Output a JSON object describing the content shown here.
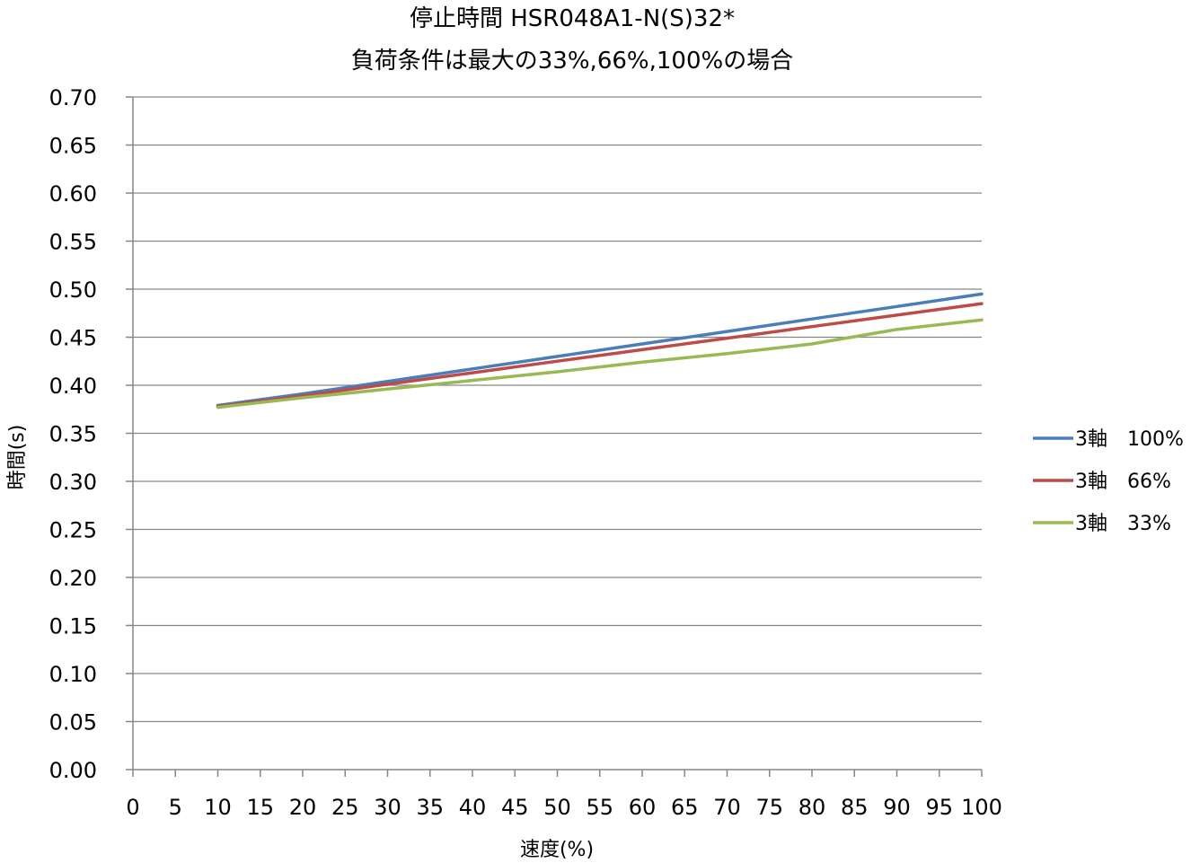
{
  "chart_data": {
    "type": "line",
    "title": [
      "停止時間 HSR048A1-N(S)32*",
      "負荷条件は最大の33%,66%,100%の場合"
    ],
    "xlabel": "速度(%)",
    "ylabel": "時間(s)",
    "xlim": [
      0,
      100
    ],
    "ylim": [
      0,
      0.7
    ],
    "x_ticks": [
      "0",
      "5",
      "10",
      "15",
      "20",
      "25",
      "30",
      "35",
      "40",
      "45",
      "50",
      "55",
      "60",
      "65",
      "70",
      "75",
      "80",
      "85",
      "90",
      "95",
      "100"
    ],
    "y_ticks": [
      "0.00",
      "0.05",
      "0.10",
      "0.15",
      "0.20",
      "0.25",
      "0.30",
      "0.35",
      "0.40",
      "0.45",
      "0.50",
      "0.55",
      "0.60",
      "0.65",
      "0.70"
    ],
    "grid": true,
    "legend_position": "right",
    "x": [
      10,
      20,
      30,
      40,
      50,
      60,
      70,
      80,
      90,
      100
    ],
    "series": [
      {
        "name": "3軸　100%",
        "color": "#4a7ebb",
        "values": [
          0.379,
          0.391,
          0.404,
          0.417,
          0.43,
          0.443,
          0.456,
          0.469,
          0.482,
          0.495
        ]
      },
      {
        "name": "3軸　66%",
        "color": "#be4b48",
        "values": [
          0.378,
          0.389,
          0.401,
          0.413,
          0.425,
          0.437,
          0.449,
          0.461,
          0.473,
          0.485
        ]
      },
      {
        "name": "3軸　33%",
        "color": "#98b954",
        "values": [
          0.377,
          0.387,
          0.396,
          0.405,
          0.414,
          0.424,
          0.433,
          0.443,
          0.458,
          0.468
        ]
      }
    ]
  }
}
